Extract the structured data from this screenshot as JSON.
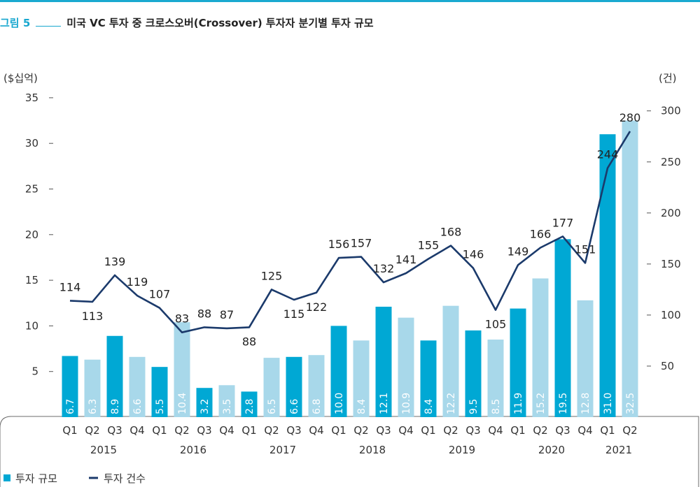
{
  "header": {
    "label": "그림 5",
    "title": "미국 VC 투자 중 크로스오버(Crossover) 투자자 분기별 투자 규모"
  },
  "colors": {
    "accent": "#18a7cf",
    "bar_dark": "#00a8d4",
    "bar_light": "#a8d8ea",
    "line": "#1b3a6b"
  },
  "chart_data": {
    "type": "bar",
    "y_left_label": "($십억)",
    "y_right_label": "(건)",
    "y_left_ticks": [
      5,
      10,
      15,
      20,
      25,
      30,
      35
    ],
    "y_right_ticks": [
      50,
      100,
      150,
      200,
      250,
      300
    ],
    "ylim_left": [
      0,
      35
    ],
    "ylim_right": [
      0,
      300
    ],
    "categories": [
      "Q1",
      "Q2",
      "Q3",
      "Q4",
      "Q1",
      "Q2",
      "Q3",
      "Q4",
      "Q1",
      "Q2",
      "Q3",
      "Q4",
      "Q1",
      "Q2",
      "Q3",
      "Q4",
      "Q1",
      "Q2",
      "Q3",
      "Q4",
      "Q1",
      "Q2",
      "Q3",
      "Q4",
      "Q1",
      "Q2"
    ],
    "years": [
      {
        "label": "2015",
        "span": 4
      },
      {
        "label": "2016",
        "span": 4
      },
      {
        "label": "2017",
        "span": 4
      },
      {
        "label": "2018",
        "span": 4
      },
      {
        "label": "2019",
        "span": 4
      },
      {
        "label": "2020",
        "span": 4
      },
      {
        "label": "2021",
        "span": 2
      }
    ],
    "series": [
      {
        "name": "투자 규모",
        "type": "bar",
        "axis": "left",
        "values": [
          6.7,
          6.3,
          8.9,
          6.6,
          5.5,
          10.4,
          3.2,
          3.5,
          2.8,
          6.5,
          6.6,
          6.8,
          10.0,
          8.4,
          12.1,
          10.9,
          8.4,
          12.2,
          9.5,
          8.5,
          11.9,
          15.2,
          19.5,
          12.8,
          31.0,
          32.5
        ],
        "labels": [
          "6.7",
          "6.3",
          "8.9",
          "6.6",
          "5.5",
          "10.4",
          "3.2",
          "3.5",
          "2.8",
          "6.5",
          "6.6",
          "6.8",
          "10.0",
          "8.4",
          "12.1",
          "10.9",
          "8.4",
          "12.2",
          "9.5",
          "8.5",
          "11.9",
          "15.2",
          "19.5",
          "12.8",
          "31.0",
          "32.5"
        ]
      },
      {
        "name": "투자 건수",
        "type": "line",
        "axis": "right",
        "values": [
          114,
          113,
          139,
          119,
          107,
          83,
          88,
          87,
          88,
          125,
          115,
          122,
          156,
          157,
          132,
          141,
          155,
          168,
          146,
          105,
          149,
          166,
          177,
          151,
          244,
          280
        ]
      }
    ],
    "legend_position": "bottom-left"
  }
}
